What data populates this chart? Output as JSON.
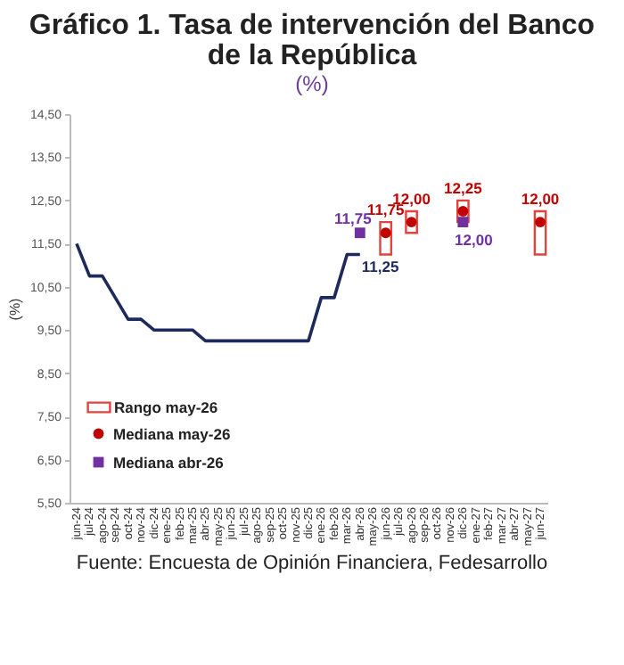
{
  "chart_data": {
    "type": "line",
    "title": "Gráfico 1. Tasa de intervención del Banco de la República",
    "subtitle": "(%)",
    "ylabel": "(%)",
    "categories": [
      "jun-24",
      "jul-24",
      "ago-24",
      "sep-24",
      "oct-24",
      "nov-24",
      "dic-24",
      "ene-25",
      "feb-25",
      "mar-25",
      "abr-25",
      "may-25",
      "jun-25",
      "jul-25",
      "ago-25",
      "sep-25",
      "oct-25",
      "nov-25",
      "dic-25",
      "ene-26",
      "feb-26",
      "mar-26",
      "abr-26",
      "may-26",
      "jun-26",
      "jul-26",
      "ago-26",
      "sep-26",
      "oct-26",
      "nov-26",
      "dic-26",
      "ene-27",
      "feb-27",
      "mar-27",
      "abr-27",
      "may-27",
      "jun-27"
    ],
    "ylim": [
      5.5,
      14.5
    ],
    "yticks": [
      {
        "value": 5.5,
        "label": "5,50"
      },
      {
        "value": 6.5,
        "label": "6,50"
      },
      {
        "value": 7.5,
        "label": "7,50"
      },
      {
        "value": 8.5,
        "label": "8,50"
      },
      {
        "value": 9.5,
        "label": "9,50"
      },
      {
        "value": 10.5,
        "label": "10,50"
      },
      {
        "value": 11.5,
        "label": "11,50"
      },
      {
        "value": 12.5,
        "label": "12,50"
      },
      {
        "value": 13.5,
        "label": "13,50"
      },
      {
        "value": 14.5,
        "label": "14,50"
      }
    ],
    "grid": false,
    "legend": "bottom left",
    "annotations": [
      "Fuente: Encuesta de Opinión Financiera, Fedesarrollo"
    ],
    "series": [
      {
        "color": "#1f2a5c",
        "values": [
          11.5,
          10.75,
          10.75,
          10.25,
          9.75,
          9.75,
          9.5,
          9.5,
          9.5,
          9.5,
          9.25,
          9.25,
          9.25,
          9.25,
          9.25,
          9.25,
          9.25,
          9.25,
          9.25,
          10.25,
          10.25,
          11.25,
          11.25,
          null,
          null,
          null,
          null,
          null,
          null,
          null,
          null,
          null,
          null,
          null,
          null,
          null,
          null
        ],
        "value_labels": [
          null,
          null,
          null,
          null,
          null,
          null,
          null,
          null,
          null,
          null,
          null,
          null,
          null,
          null,
          null,
          null,
          null,
          null,
          null,
          null,
          null,
          null,
          "11,25",
          null,
          null,
          null,
          null,
          null,
          null,
          null,
          null,
          null,
          null,
          null,
          null,
          null,
          null
        ]
      },
      {
        "type": "bar",
        "name": "Rango may-26",
        "color": "#e0443c",
        "base": [
          null,
          null,
          null,
          null,
          null,
          null,
          null,
          null,
          null,
          null,
          null,
          null,
          null,
          null,
          null,
          null,
          null,
          null,
          null,
          null,
          null,
          null,
          null,
          null,
          11.25,
          null,
          11.75,
          null,
          null,
          null,
          12.0,
          null,
          null,
          null,
          null,
          null,
          11.25
        ],
        "values": [
          null,
          null,
          null,
          null,
          null,
          null,
          null,
          null,
          null,
          null,
          null,
          null,
          null,
          null,
          null,
          null,
          null,
          null,
          null,
          null,
          null,
          null,
          null,
          null,
          0.75,
          null,
          0.5,
          null,
          null,
          null,
          0.5,
          null,
          null,
          null,
          null,
          null,
          1.0
        ]
      },
      {
        "type": "scatter",
        "name": "Mediana may-26",
        "color": "#c00000",
        "marker": "circle",
        "values": [
          null,
          null,
          null,
          null,
          null,
          null,
          null,
          null,
          null,
          null,
          null,
          null,
          null,
          null,
          null,
          null,
          null,
          null,
          null,
          null,
          null,
          null,
          null,
          null,
          11.75,
          null,
          12.0,
          null,
          null,
          null,
          12.25,
          null,
          null,
          null,
          null,
          null,
          12.0
        ],
        "value_labels": [
          null,
          null,
          null,
          null,
          null,
          null,
          null,
          null,
          null,
          null,
          null,
          null,
          null,
          null,
          null,
          null,
          null,
          null,
          null,
          null,
          null,
          null,
          null,
          null,
          "11,75",
          null,
          "12,00",
          null,
          null,
          null,
          "12,25",
          null,
          null,
          null,
          null,
          null,
          "12,00"
        ]
      },
      {
        "type": "scatter",
        "name": "Mediana abr-26",
        "color": "#7030a0",
        "marker": "square",
        "values": [
          null,
          null,
          null,
          null,
          null,
          null,
          null,
          null,
          null,
          null,
          null,
          null,
          null,
          null,
          null,
          null,
          null,
          null,
          null,
          null,
          null,
          null,
          11.75,
          null,
          null,
          null,
          null,
          null,
          null,
          null,
          12.0,
          null,
          null,
          null,
          null,
          null,
          null
        ],
        "value_labels": [
          null,
          null,
          null,
          null,
          null,
          null,
          null,
          null,
          null,
          null,
          null,
          null,
          null,
          null,
          null,
          null,
          null,
          null,
          null,
          null,
          null,
          null,
          "11,75",
          null,
          null,
          null,
          null,
          null,
          null,
          null,
          "12,00",
          null,
          null,
          null,
          null,
          null,
          null
        ]
      }
    ]
  }
}
